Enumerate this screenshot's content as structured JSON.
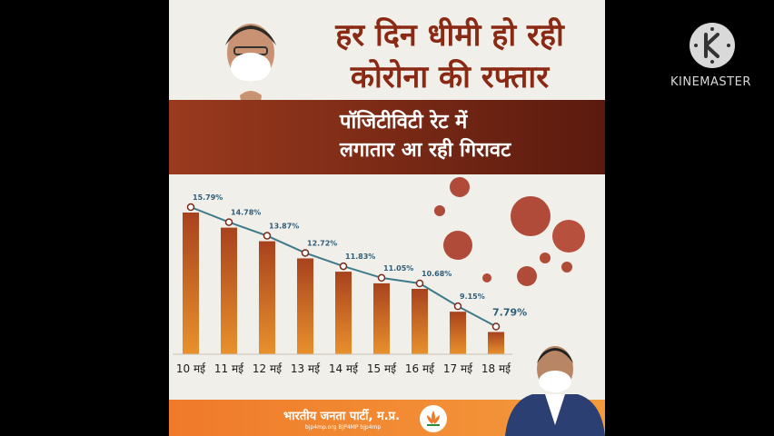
{
  "poster": {
    "title_line1": "हर दिन धीमी हो रही",
    "title_line2": "कोरोना की रफ्तार",
    "subtitle_line1": "पॉजिटीविटी रेट में",
    "subtitle_line2": "लगातार आ रही गिरावट"
  },
  "chart_data": {
    "type": "bar",
    "title": "",
    "xlabel": "",
    "ylabel": "",
    "categories": [
      "10 मई",
      "11 मई",
      "12 मई",
      "13 मई",
      "14 मई",
      "15 मई",
      "16 मई",
      "17 मई",
      "18 मई"
    ],
    "values": [
      15.79,
      14.78,
      13.87,
      12.72,
      11.83,
      11.05,
      10.68,
      9.15,
      7.79
    ],
    "data_labels": [
      "15.79%",
      "14.78%",
      "13.87%",
      "12.72%",
      "11.83%",
      "11.05%",
      "10.68%",
      "9.15%",
      "7.79%"
    ],
    "overlay_line": true,
    "ylim": [
      6.3,
      15.79
    ],
    "grid": false,
    "colors": {
      "bar_top": "#a8421e",
      "bar_bottom": "#e8912c",
      "line": "#3e7a8a",
      "label": "#2f5e7a"
    }
  },
  "footer": {
    "party_name": "भारतीय जनता पार्टी, म.प्र.",
    "contact": "bjp4mp.org   BJP4MP   bjp4mp"
  },
  "watermark": {
    "text": "KINEMASTER",
    "icon": "kinemaster-logo-icon"
  }
}
